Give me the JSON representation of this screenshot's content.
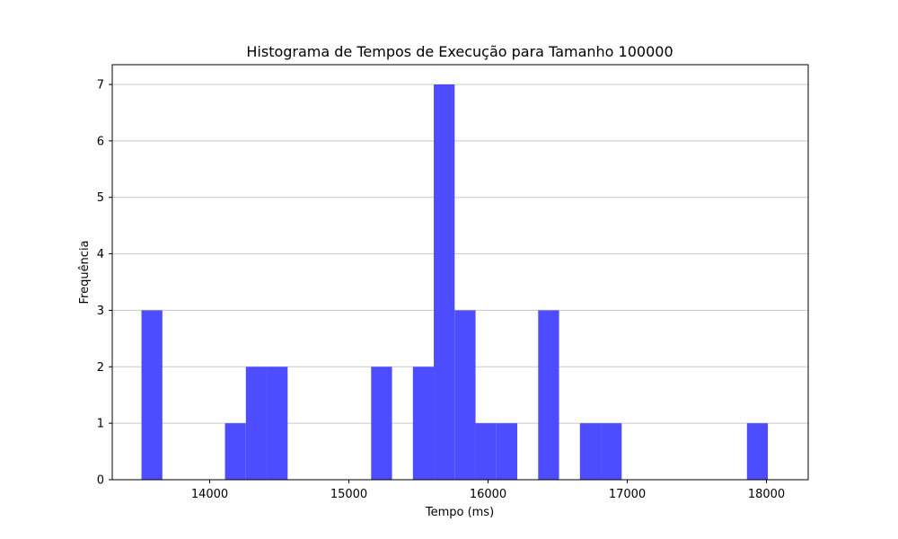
{
  "chart_data": {
    "type": "bar",
    "title": "Histograma de Tempos de Execução para Tamanho 100000",
    "xlabel": "Tempo (ms)",
    "ylabel": "Frequência",
    "xlim": [
      13300,
      18300
    ],
    "ylim": [
      0,
      7.35
    ],
    "x_ticks": [
      14000,
      15000,
      16000,
      17000,
      18000
    ],
    "y_ticks": [
      0,
      1,
      2,
      3,
      4,
      5,
      6,
      7
    ],
    "grid": "y",
    "bar_color": "#4d4dff",
    "bins": [
      {
        "x0": 13510,
        "x1": 13660,
        "count": 3
      },
      {
        "x0": 14110,
        "x1": 14260,
        "count": 1
      },
      {
        "x0": 14260,
        "x1": 14410,
        "count": 2
      },
      {
        "x0": 14410,
        "x1": 14560,
        "count": 2
      },
      {
        "x0": 15160,
        "x1": 15310,
        "count": 2
      },
      {
        "x0": 15460,
        "x1": 15610,
        "count": 2
      },
      {
        "x0": 15610,
        "x1": 15760,
        "count": 7
      },
      {
        "x0": 15760,
        "x1": 15910,
        "count": 3
      },
      {
        "x0": 15910,
        "x1": 16060,
        "count": 1
      },
      {
        "x0": 16060,
        "x1": 16210,
        "count": 1
      },
      {
        "x0": 16360,
        "x1": 16510,
        "count": 3
      },
      {
        "x0": 16660,
        "x1": 16810,
        "count": 1
      },
      {
        "x0": 16810,
        "x1": 16960,
        "count": 1
      },
      {
        "x0": 17860,
        "x1": 18010,
        "count": 1
      }
    ]
  }
}
